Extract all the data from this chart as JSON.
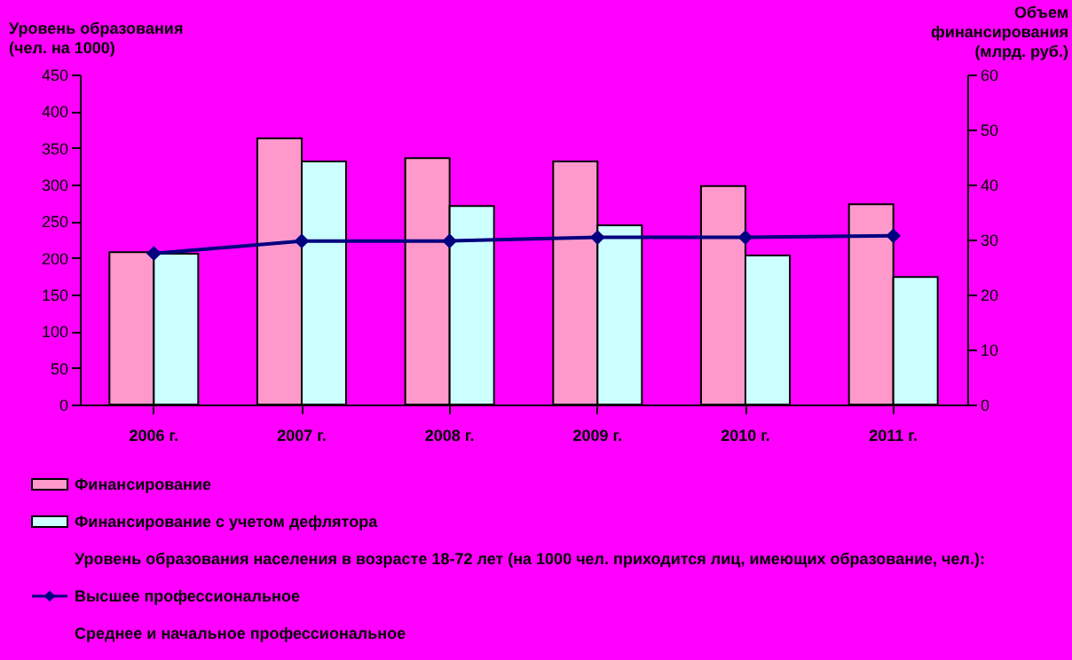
{
  "chart_data": {
    "type": "bar",
    "ylabel": "Уровень образования\n(чел. на 1000)",
    "y2label": "Объем\nфинансирования\n(млрд. руб.)",
    "categories": [
      "2006 г.",
      "2007 г.",
      "2008 г.",
      "2009 г.",
      "2010 г.",
      "2011 г."
    ],
    "series": [
      {
        "name": "Финансирование",
        "axis": "y2",
        "color": "#ff99cc",
        "values": [
          27.7,
          48.4,
          44.8,
          44.2,
          39.7,
          36.4
        ]
      },
      {
        "name": "Финансирование с учетом дефлятора",
        "axis": "y2",
        "color": "#ccffff",
        "values": [
          27.4,
          44.2,
          36.1,
          32.6,
          27.1,
          23.2
        ]
      },
      {
        "name": "Высшее профессиональное",
        "type": "line",
        "axis": "y",
        "color": "#000080",
        "marker": "diamond",
        "values": [
          206,
          223,
          223,
          228,
          228,
          230
        ]
      }
    ],
    "ylim": [
      0,
      450
    ],
    "yticks": [
      0,
      50,
      100,
      150,
      200,
      250,
      300,
      350,
      400,
      450
    ],
    "y2lim": [
      0,
      60
    ],
    "y2ticks": [
      0,
      10,
      20,
      30,
      40,
      50,
      60
    ],
    "grid": false,
    "legend": "bottom",
    "annotations": [
      "Уровень образования населения в возрасте 18-72 лет (на 1000 чел. приходится лиц, имеющих образование, чел.):",
      "Среднее и начальное профессиональное"
    ]
  }
}
